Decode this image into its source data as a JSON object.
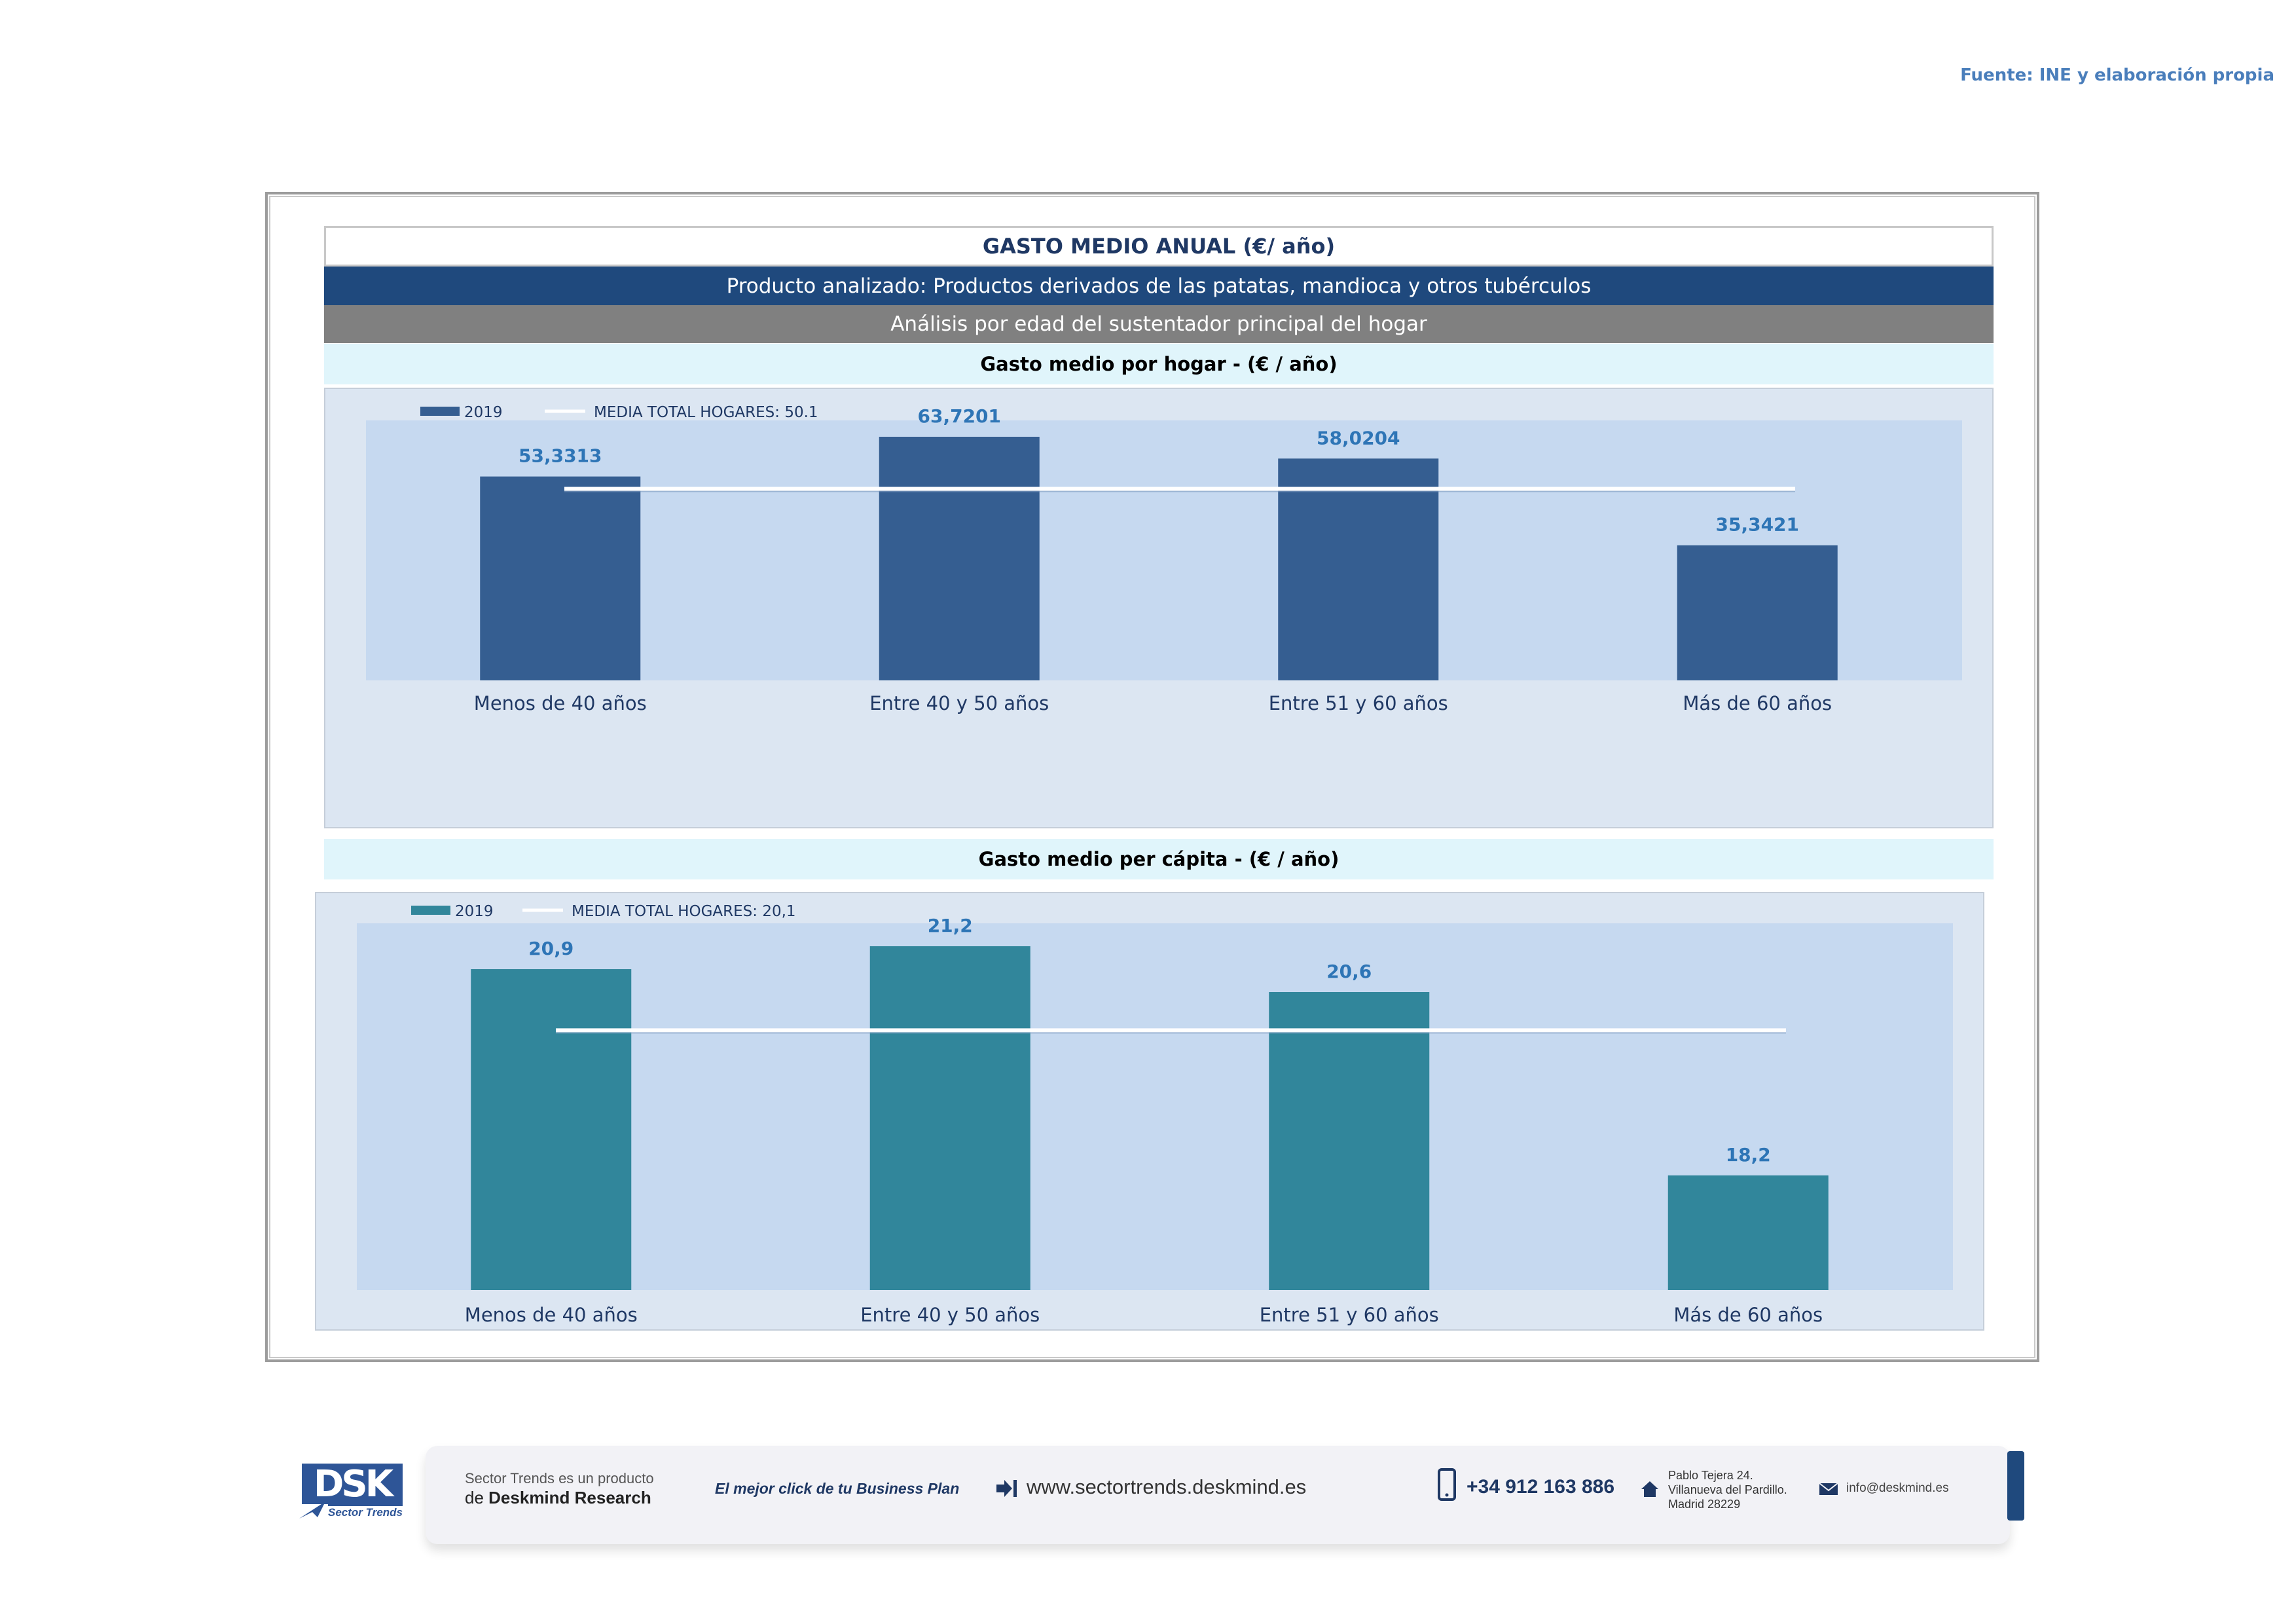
{
  "source": "Fuente: INE y elaboración propia",
  "header": {
    "title": "GASTO MEDIO ANUAL (€/ año)",
    "product": "Producto analizado: Productos derivados de las patatas, mandioca y otros tubérculos",
    "analysis": "Análisis por edad del sustentador principal del hogar"
  },
  "chart_data": [
    {
      "type": "bar",
      "title": "Gasto medio por hogar -  (€ / año)",
      "categories": [
        "Menos de 40 años",
        "Entre 40 y 50 años",
        "Entre 51  y 60 años",
        "Más de 60 años"
      ],
      "series": [
        {
          "name": "2019",
          "values": [
            53.3313,
            63.7201,
            58.0204,
            35.3421
          ],
          "color": "#355e91"
        }
      ],
      "value_labels": [
        "53,3313",
        "63,7201",
        "58,0204",
        "35,3421"
      ],
      "reference_line": {
        "label": "MEDIA TOTAL  HOGARES:   50.1",
        "value": 50.1,
        "color": "#ffffff"
      },
      "ylim": [
        0,
        68
      ],
      "legend_position": "top-left"
    },
    {
      "type": "bar",
      "title": "Gasto medio per cápita -  (€ / año)",
      "categories": [
        "Menos de 40 años",
        "Entre 40 y 50 años",
        "Entre 51  y 60 años",
        "Más de 60 años"
      ],
      "series": [
        {
          "name": "2019",
          "values": [
            20.9,
            21.2,
            20.6,
            18.2
          ],
          "color": "#31869b"
        }
      ],
      "value_labels": [
        "20,9",
        "21,2",
        "20,6",
        "18,2"
      ],
      "reference_line": {
        "label": "MEDIA TOTAL  HOGARES:   20,1",
        "value": 20.1,
        "color": "#ffffff"
      },
      "ylim": [
        16.7,
        21.5
      ],
      "legend_position": "top-left"
    }
  ],
  "footer": {
    "logo_text": "DSK",
    "logo_sub": "Sector Trends",
    "product_line1": "Sector Trends es un producto",
    "product_line2_prefix": "de",
    "product_line2_brand": "Deskmind Research",
    "slogan": "El mejor click de tu Business Plan",
    "website": "www.sectortrends.deskmind.es",
    "phone": "+34 912 163 886",
    "address_line1": "Pablo Tejera 24.",
    "address_line2": "Villanueva del Pardillo.",
    "address_line3": "Madrid 28229",
    "email": "info@deskmind.es"
  }
}
